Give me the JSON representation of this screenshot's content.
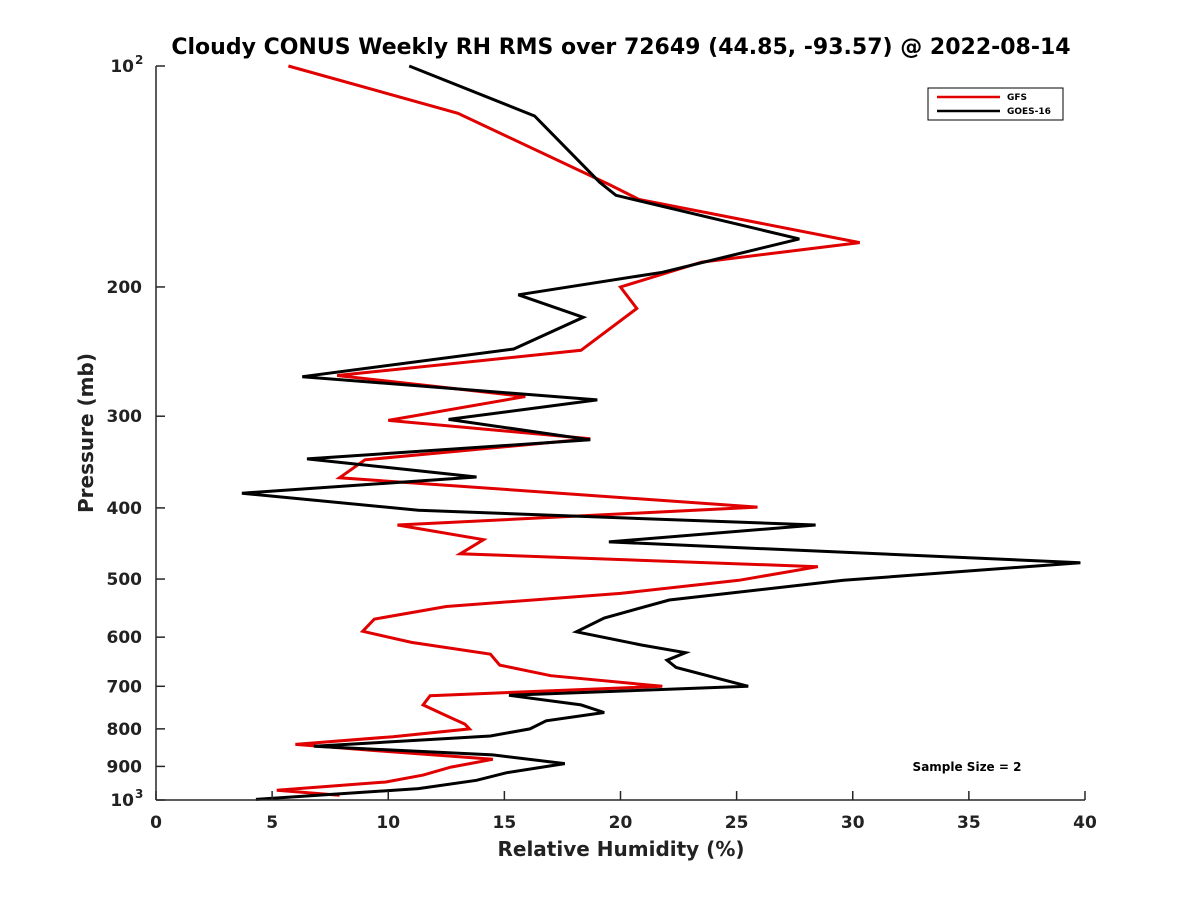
{
  "chart_data": {
    "type": "line",
    "title": "Cloudy CONUS Weekly RH RMS over 72649 (44.85, -93.57) @ 2022-08-14",
    "xlabel": "Relative Humidity (%)",
    "ylabel": "Pressure (mb)",
    "xlim": [
      0,
      40
    ],
    "ylim": [
      100,
      1000
    ],
    "yscale": "log",
    "y_reversed": true,
    "grid": false,
    "legend_position": "top-right",
    "annotation": "Sample Size = 2",
    "x_ticks": [
      "0",
      "5",
      "10",
      "15",
      "20",
      "25",
      "30",
      "35",
      "40"
    ],
    "y_ticks": [
      {
        "value": 100,
        "base": "10",
        "exp": "2",
        "label": ""
      },
      {
        "value": 200,
        "base": "",
        "exp": "",
        "label": "200"
      },
      {
        "value": 300,
        "base": "",
        "exp": "",
        "label": "300"
      },
      {
        "value": 400,
        "base": "",
        "exp": "",
        "label": "400"
      },
      {
        "value": 500,
        "base": "",
        "exp": "",
        "label": "500"
      },
      {
        "value": 600,
        "base": "",
        "exp": "",
        "label": "600"
      },
      {
        "value": 700,
        "base": "",
        "exp": "",
        "label": "700"
      },
      {
        "value": 800,
        "base": "",
        "exp": "",
        "label": "800"
      },
      {
        "value": 900,
        "base": "",
        "exp": "",
        "label": "900"
      },
      {
        "value": 1000,
        "base": "10",
        "exp": "3",
        "label": ""
      }
    ],
    "series": [
      {
        "name": "GFS",
        "color": "#e00000",
        "points": [
          [
            5.7,
            100
          ],
          [
            13.0,
            116
          ],
          [
            19.5,
            145
          ],
          [
            20.8,
            152
          ],
          [
            30.3,
            174
          ],
          [
            23.5,
            185
          ],
          [
            20.0,
            200
          ],
          [
            20.7,
            214
          ],
          [
            18.3,
            244
          ],
          [
            7.8,
            264
          ],
          [
            15.9,
            282
          ],
          [
            10.0,
            304
          ],
          [
            18.7,
            322
          ],
          [
            9.0,
            344
          ],
          [
            7.9,
            364
          ],
          [
            25.9,
            399
          ],
          [
            10.4,
            422
          ],
          [
            14.1,
            442
          ],
          [
            13.1,
            462
          ],
          [
            28.5,
            481
          ],
          [
            25.1,
            502
          ],
          [
            20.0,
            523
          ],
          [
            12.5,
            545
          ],
          [
            9.4,
            567
          ],
          [
            8.9,
            589
          ],
          [
            11.0,
            610
          ],
          [
            14.4,
            633
          ],
          [
            14.8,
            655
          ],
          [
            17.0,
            677
          ],
          [
            21.8,
            700
          ],
          [
            11.8,
            721
          ],
          [
            11.5,
            742
          ],
          [
            12.4,
            765
          ],
          [
            13.3,
            788
          ],
          [
            13.5,
            800
          ],
          [
            10.2,
            820
          ],
          [
            6.0,
            840
          ],
          [
            10.2,
            860
          ],
          [
            14.5,
            880
          ],
          [
            12.7,
            902
          ],
          [
            11.5,
            925
          ],
          [
            9.9,
            945
          ],
          [
            5.2,
            970
          ],
          [
            7.9,
            985
          ]
        ]
      },
      {
        "name": "GOES-16",
        "color": "#000000",
        "points": [
          [
            10.9,
            100
          ],
          [
            16.3,
            117
          ],
          [
            19.1,
            144
          ],
          [
            19.8,
            150
          ],
          [
            27.7,
            172
          ],
          [
            21.8,
            191
          ],
          [
            15.6,
            205
          ],
          [
            18.4,
            220
          ],
          [
            15.4,
            243
          ],
          [
            6.3,
            265
          ],
          [
            19.0,
            285
          ],
          [
            12.6,
            303
          ],
          [
            18.7,
            323
          ],
          [
            6.5,
            343
          ],
          [
            13.8,
            363
          ],
          [
            3.7,
            382
          ],
          [
            11.3,
            403
          ],
          [
            28.4,
            422
          ],
          [
            19.5,
            445
          ],
          [
            39.8,
            475
          ],
          [
            29.6,
            502
          ],
          [
            22.1,
            534
          ],
          [
            19.3,
            565
          ],
          [
            18.1,
            590
          ],
          [
            20.9,
            615
          ],
          [
            22.8,
            630
          ],
          [
            22.0,
            645
          ],
          [
            22.4,
            660
          ],
          [
            25.5,
            700
          ],
          [
            15.2,
            720
          ],
          [
            18.3,
            742
          ],
          [
            19.3,
            760
          ],
          [
            16.8,
            780
          ],
          [
            16.1,
            800
          ],
          [
            14.4,
            818
          ],
          [
            6.8,
            845
          ],
          [
            14.5,
            868
          ],
          [
            17.6,
            892
          ],
          [
            15.1,
            918
          ],
          [
            13.8,
            940
          ],
          [
            11.3,
            965
          ],
          [
            4.3,
            998
          ]
        ]
      }
    ]
  }
}
